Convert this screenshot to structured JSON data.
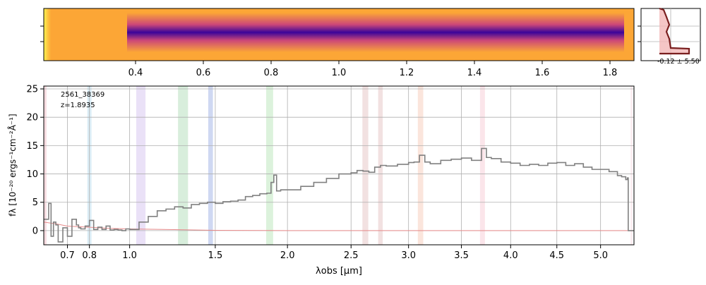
{
  "chart_data": [
    {
      "type": "heatmap",
      "panel": "2d-spectrum",
      "colormap": "plasma",
      "x_ticks": [
        "0.4",
        "0.6",
        "0.8",
        "1.0",
        "1.2",
        "1.4",
        "1.6",
        "1.8"
      ],
      "x_tick_values": [
        0.4,
        0.6,
        0.8,
        1.0,
        1.2,
        1.4,
        1.6,
        1.8
      ]
    },
    {
      "type": "line",
      "panel": "spatial-profile",
      "annotation": "-0.12 ± 5.50",
      "colors": {
        "profile": "#7a1f1f",
        "fill": "#f2b8b8"
      }
    },
    {
      "type": "line",
      "panel": "1d-spectrum",
      "title": "",
      "xlabel": "λobs [μm]",
      "ylabel": "fλ [10⁻²⁰ ergs⁻¹cm⁻²Å⁻¹]",
      "x_scale": "sqrt",
      "xlim": [
        0.6,
        5.4
      ],
      "ylim": [
        -2.5,
        25.5
      ],
      "grid": true,
      "object_id": "2561_38369",
      "redshift_label": "z=1.8935",
      "x_ticks": [
        "0.7",
        "0.8",
        "1.0",
        "1.5",
        "2.0",
        "2.5",
        "3.0",
        "3.5",
        "4.0",
        "4.5",
        "5.0"
      ],
      "x_tick_values": [
        0.7,
        0.8,
        1.0,
        1.5,
        2.0,
        2.5,
        3.0,
        3.5,
        4.0,
        4.5,
        5.0
      ],
      "y_ticks": [
        "0",
        "5",
        "10",
        "15",
        "20",
        "25"
      ],
      "y_tick_values": [
        0,
        5,
        10,
        15,
        20,
        25
      ],
      "colors": {
        "spectrum": "#808080",
        "model": "#e88a8a"
      },
      "spectrum": {
        "name": "",
        "x": [
          0.6,
          0.62,
          0.63,
          0.64,
          0.65,
          0.66,
          0.68,
          0.7,
          0.72,
          0.74,
          0.75,
          0.76,
          0.78,
          0.8,
          0.82,
          0.84,
          0.86,
          0.88,
          0.9,
          0.92,
          0.94,
          0.96,
          0.98,
          1.0,
          1.05,
          1.1,
          1.15,
          1.2,
          1.25,
          1.3,
          1.35,
          1.4,
          1.45,
          1.5,
          1.55,
          1.6,
          1.65,
          1.7,
          1.75,
          1.8,
          1.85,
          1.88,
          1.9,
          1.92,
          1.95,
          2.0,
          2.1,
          2.2,
          2.3,
          2.4,
          2.5,
          2.55,
          2.6,
          2.65,
          2.7,
          2.75,
          2.8,
          2.9,
          3.0,
          3.05,
          3.1,
          3.15,
          3.2,
          3.3,
          3.4,
          3.5,
          3.6,
          3.7,
          3.75,
          3.8,
          3.9,
          4.0,
          4.1,
          4.2,
          4.3,
          4.4,
          4.5,
          4.6,
          4.7,
          4.8,
          4.9,
          5.0,
          5.1,
          5.2,
          5.25,
          5.3,
          5.32,
          5.33,
          5.4
        ],
        "y": [
          2.0,
          4.8,
          -1.0,
          1.5,
          1.0,
          -2.0,
          0.5,
          -1.0,
          2.0,
          1.0,
          0.5,
          0.3,
          0.8,
          1.8,
          0.2,
          0.6,
          0.2,
          0.8,
          0.1,
          0.2,
          0.1,
          0.0,
          0.3,
          0.2,
          1.5,
          2.5,
          3.5,
          3.8,
          4.2,
          4.0,
          4.6,
          4.8,
          5.0,
          4.8,
          5.1,
          5.2,
          5.4,
          6.0,
          6.2,
          6.5,
          6.6,
          8.5,
          9.8,
          7.0,
          7.2,
          7.2,
          7.8,
          8.5,
          9.2,
          10.0,
          10.2,
          10.6,
          10.5,
          10.3,
          11.2,
          11.5,
          11.4,
          11.7,
          12.0,
          12.1,
          13.3,
          12.1,
          11.8,
          12.4,
          12.6,
          12.8,
          12.4,
          14.5,
          12.9,
          12.7,
          12.1,
          11.9,
          11.5,
          11.7,
          11.5,
          11.9,
          12.0,
          11.5,
          11.8,
          11.2,
          10.8,
          10.8,
          10.4,
          9.7,
          9.5,
          9.0,
          9.3,
          0.0,
          0.0
        ]
      },
      "model": {
        "name": "",
        "x": [
          0.6,
          0.65,
          0.7,
          0.8,
          0.9,
          1.0,
          1.5,
          2.0,
          3.0,
          4.0,
          5.0,
          5.4
        ],
        "y": [
          1.5,
          1.2,
          0.8,
          0.6,
          0.4,
          0.3,
          0.05,
          0.0,
          0.0,
          0.0,
          0.0,
          0.0
        ]
      },
      "bands": [
        {
          "x": 0.605,
          "w": 0.012,
          "color": "#f0c0c8"
        },
        {
          "x": 0.8,
          "w": 0.02,
          "color": "#bfe0f0"
        },
        {
          "x": 1.06,
          "w": 0.05,
          "color": "#d8c8f0"
        },
        {
          "x": 1.3,
          "w": 0.06,
          "color": "#b8e0c0"
        },
        {
          "x": 1.47,
          "w": 0.03,
          "color": "#a8b8e8"
        },
        {
          "x": 1.87,
          "w": 0.05,
          "color": "#c0e8c0"
        },
        {
          "x": 2.62,
          "w": 0.05,
          "color": "#e8c8c8"
        },
        {
          "x": 2.75,
          "w": 0.04,
          "color": "#e8c8c8"
        },
        {
          "x": 3.11,
          "w": 0.05,
          "color": "#f8d0c0"
        },
        {
          "x": 3.71,
          "w": 0.05,
          "color": "#f8d0d8"
        },
        {
          "x": 5.37,
          "w": 0.02,
          "color": "#f8d8e0"
        }
      ]
    }
  ]
}
